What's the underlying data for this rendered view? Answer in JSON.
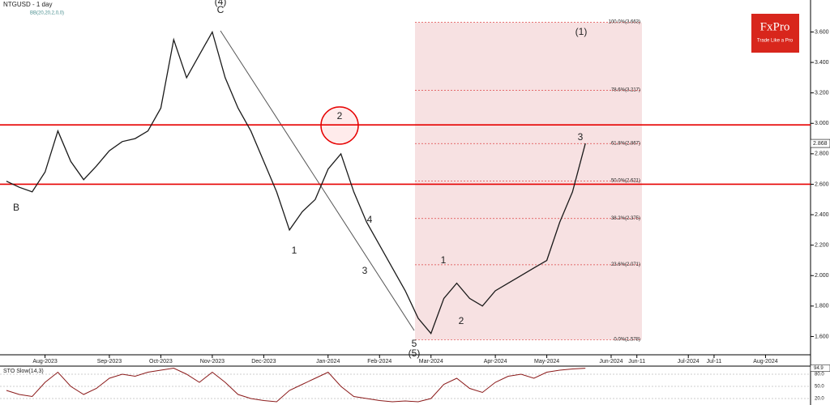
{
  "brand": {
    "name": "FxPro",
    "tagline": "Trade Like a Pro"
  },
  "chart_data": [
    {
      "type": "line",
      "title": "NTGUSD - 1 day",
      "subtitle": "BB(20,20,2,0,0)",
      "categories": [
        null,
        null,
        null,
        "Aug-2023",
        null,
        null,
        null,
        null,
        "Sep-2023",
        null,
        null,
        null,
        "Oct-2023",
        null,
        null,
        null,
        "Nov-2023",
        null,
        null,
        null,
        "Dec-2023",
        null,
        null,
        null,
        null,
        "Jan-2024",
        null,
        null,
        null,
        "Feb-2024",
        null,
        null,
        null,
        "Mar-2024",
        null,
        null,
        null,
        null,
        "Apr-2024",
        null,
        null,
        null,
        "May-2024",
        null,
        null,
        null,
        null,
        "Jun-2024",
        null,
        "Jun-11",
        null,
        null,
        null,
        "Jul-2024",
        null,
        "Jul-11",
        null,
        null,
        null,
        "Aug-2024",
        null,
        null,
        null
      ],
      "values": [
        2.62,
        2.58,
        2.55,
        2.68,
        2.95,
        2.75,
        2.63,
        2.72,
        2.82,
        2.88,
        2.9,
        2.95,
        3.1,
        3.55,
        3.3,
        3.45,
        3.6,
        3.3,
        3.1,
        2.95,
        2.75,
        2.55,
        2.3,
        2.42,
        2.5,
        2.7,
        2.8,
        2.55,
        2.35,
        2.2,
        2.05,
        1.9,
        1.72,
        1.62,
        1.85,
        1.95,
        1.85,
        1.8,
        1.9,
        1.95,
        2.0,
        2.05,
        2.1,
        2.35,
        2.55,
        2.868,
        null,
        null,
        null,
        null,
        null,
        null,
        null,
        null,
        null,
        null,
        null,
        null,
        null,
        null,
        null,
        null,
        null
      ],
      "color": "#1a1a1a",
      "ylim": [
        1.48,
        3.81
      ],
      "yticks": [
        {
          "value": 1.6,
          "label": "1.600"
        },
        {
          "value": 1.8,
          "label": "1.800"
        },
        {
          "value": 2.0,
          "label": "2.000"
        },
        {
          "value": 2.2,
          "label": "2.200"
        },
        {
          "value": 2.4,
          "label": "2.400"
        },
        {
          "value": 2.6,
          "label": "2.600"
        },
        {
          "value": 2.8,
          "label": "2.800"
        },
        {
          "value": 3.0,
          "label": "3.000"
        },
        {
          "value": 3.2,
          "label": "3.200"
        },
        {
          "value": 3.4,
          "label": "3.400"
        },
        {
          "value": 3.6,
          "label": "3.600"
        }
      ],
      "price_tag": {
        "value": 2.868,
        "label": "2.868"
      },
      "hlines": [
        2.99,
        2.6
      ],
      "hline_color": "#e60000",
      "fib_levels": [
        {
          "value": 3.663,
          "label": "100.0%(3.663)"
        },
        {
          "value": 3.217,
          "label": "78.6%(3.217)"
        },
        {
          "value": 2.867,
          "label": "61.8%(2.867)"
        },
        {
          "value": 2.621,
          "label": "50.0%(2.621)"
        },
        {
          "value": 2.375,
          "label": "38.2%(2.375)"
        },
        {
          "value": 2.071,
          "label": "23.6%(2.071)"
        },
        {
          "value": 1.578,
          "label": "0.0%(1.578)"
        }
      ],
      "annotations": [
        "(4)",
        "C",
        "B",
        "1",
        "2",
        "3",
        "4",
        "5",
        "(5)",
        "1",
        "2",
        "3",
        "(1)"
      ]
    },
    {
      "type": "line",
      "title": "STO Slow(14,3)",
      "values": [
        40,
        30,
        25,
        60,
        85,
        50,
        30,
        45,
        70,
        80,
        75,
        85,
        90,
        95,
        80,
        60,
        85,
        60,
        30,
        20,
        15,
        12,
        40,
        55,
        70,
        85,
        50,
        25,
        20,
        15,
        12,
        14,
        12,
        20,
        55,
        70,
        45,
        35,
        60,
        75,
        80,
        70,
        85,
        90,
        93,
        94.9
      ],
      "color": "#8b1a1a",
      "ylim": [
        10,
        100
      ],
      "yticks": [
        {
          "value": 20,
          "label": "20.0"
        },
        {
          "value": 50,
          "label": "50.0"
        },
        {
          "value": 80,
          "label": "80.0"
        }
      ],
      "last_tag": {
        "value": 94.9,
        "label": "94.9"
      }
    }
  ]
}
